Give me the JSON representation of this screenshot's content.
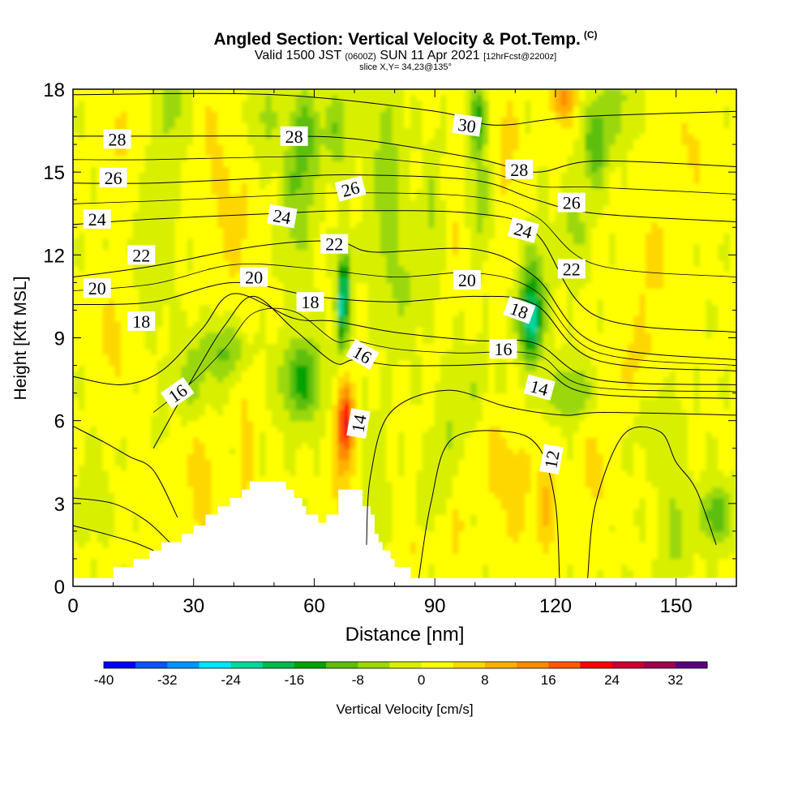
{
  "title": {
    "main": "Angled Section: Vertical Velocity & Pot.Temp.",
    "main_tag": "(C)",
    "valid_a": "Valid 1500 JST",
    "valid_tag1": "(0600Z)",
    "valid_b": "SUN 11 Apr 2021",
    "valid_tag2": "[12hrFcst@2200z]",
    "slice": "slice X,Y= 34,23@135°"
  },
  "chart_data": {
    "type": "heatmap",
    "title": "Angled Section: Vertical Velocity & Pot.Temp.",
    "xlabel": "Distance [nm]",
    "ylabel": "Height [Kft MSL]",
    "xlim": [
      0,
      165
    ],
    "ylim": [
      0,
      18
    ],
    "x_ticks": [
      0,
      30,
      60,
      90,
      120,
      150
    ],
    "y_ticks": [
      0,
      3,
      6,
      9,
      12,
      15,
      18
    ],
    "colorbar": {
      "label": "Vertical Velocity [cm/s]",
      "ticks": [
        -40,
        -32,
        -24,
        -16,
        -8,
        0,
        8,
        16,
        24,
        32
      ],
      "range": [
        -40,
        36
      ],
      "step": 4,
      "colors": [
        "#0000ff",
        "#0a55ff",
        "#0094ff",
        "#00e6ff",
        "#00d79c",
        "#00b94a",
        "#00a200",
        "#5bbf0a",
        "#9ad80a",
        "#d8f000",
        "#ffff00",
        "#ffd700",
        "#ffb000",
        "#ff8c00",
        "#ff5a00",
        "#ff0000",
        "#cc0030",
        "#a00050",
        "#5c0080"
      ]
    },
    "velocity_features": [
      {
        "x": 32,
        "y": 3.8,
        "w": 7,
        "sx": 3,
        "sy": 2.2
      },
      {
        "x": 22,
        "y": 4.5,
        "w": 4,
        "sx": 5,
        "sy": 2.5
      },
      {
        "x": 43,
        "y": 5,
        "w": 6,
        "sx": 2,
        "sy": 3
      },
      {
        "x": 68,
        "y": 6,
        "w": 20,
        "sx": 2,
        "sy": 1.3
      },
      {
        "x": 67,
        "y": 4.5,
        "w": 7,
        "sx": 3,
        "sy": 2.5
      },
      {
        "x": 110,
        "y": 3.5,
        "w": 7,
        "sx": 4,
        "sy": 2
      },
      {
        "x": 118,
        "y": 3,
        "w": 8,
        "sx": 2.5,
        "sy": 2
      },
      {
        "x": 130,
        "y": 4.5,
        "w": 5,
        "sx": 4,
        "sy": 2
      },
      {
        "x": 95,
        "y": 2,
        "w": 4,
        "sx": 3,
        "sy": 2
      },
      {
        "x": 104,
        "y": 5,
        "w": 5,
        "sx": 3,
        "sy": 2
      },
      {
        "x": 85,
        "y": 1.5,
        "w": 4,
        "sx": 3,
        "sy": 1
      },
      {
        "x": 122,
        "y": 17.8,
        "w": 14,
        "sx": 3,
        "sy": 1
      },
      {
        "x": 108,
        "y": 16,
        "w": 6,
        "sx": 3,
        "sy": 2
      },
      {
        "x": 112,
        "y": 12,
        "w": 4,
        "sx": 5,
        "sy": 2
      },
      {
        "x": 40,
        "y": 13,
        "w": 5,
        "sx": 6,
        "sy": 2.5
      },
      {
        "x": 10,
        "y": 9,
        "w": 5,
        "sx": 4,
        "sy": 2
      },
      {
        "x": 12,
        "y": 16,
        "w": 4,
        "sx": 4,
        "sy": 2
      },
      {
        "x": 35,
        "y": 16.5,
        "w": 4,
        "sx": 4,
        "sy": 2
      },
      {
        "x": 145,
        "y": 12,
        "w": 4,
        "sx": 6,
        "sy": 3
      },
      {
        "x": 140,
        "y": 8,
        "w": 4,
        "sx": 6,
        "sy": 2
      },
      {
        "x": 155,
        "y": 16,
        "w": 4,
        "sx": 5,
        "sy": 2
      },
      {
        "x": 95,
        "y": 13,
        "w": 4,
        "sx": 4,
        "sy": 2
      },
      {
        "x": 38,
        "y": 8.5,
        "w": -9,
        "sx": 5,
        "sy": 1.1
      },
      {
        "x": 30,
        "y": 7.5,
        "w": -7,
        "sx": 4,
        "sy": 1.5
      },
      {
        "x": 22,
        "y": 5.5,
        "w": -5,
        "sx": 3,
        "sy": 1.5
      },
      {
        "x": 57,
        "y": 7.5,
        "w": -14,
        "sx": 5,
        "sy": 1.5
      },
      {
        "x": 67,
        "y": 10,
        "w": -20,
        "sx": 1.5,
        "sy": 1.5
      },
      {
        "x": 68,
        "y": 11.3,
        "w": -12,
        "sx": 1.5,
        "sy": 1.2
      },
      {
        "x": 56,
        "y": 14,
        "w": -8,
        "sx": 4,
        "sy": 2.2
      },
      {
        "x": 58,
        "y": 16.5,
        "w": -10,
        "sx": 4,
        "sy": 1.5
      },
      {
        "x": 66,
        "y": 16.5,
        "w": -8,
        "sx": 3,
        "sy": 1.5
      },
      {
        "x": 78,
        "y": 15,
        "w": -7,
        "sx": 4,
        "sy": 3
      },
      {
        "x": 82,
        "y": 11,
        "w": -5,
        "sx": 5,
        "sy": 2
      },
      {
        "x": 90,
        "y": 13.5,
        "w": -6,
        "sx": 3,
        "sy": 2
      },
      {
        "x": 101,
        "y": 17,
        "w": -14,
        "sx": 2,
        "sy": 1.2
      },
      {
        "x": 101,
        "y": 14,
        "w": -7,
        "sx": 3,
        "sy": 2
      },
      {
        "x": 114,
        "y": 9.5,
        "w": -18,
        "sx": 2.5,
        "sy": 1.3
      },
      {
        "x": 114,
        "y": 11,
        "w": -12,
        "sx": 4,
        "sy": 2
      },
      {
        "x": 124,
        "y": 7,
        "w": -9,
        "sx": 6,
        "sy": 1
      },
      {
        "x": 130,
        "y": 16,
        "w": -12,
        "sx": 3,
        "sy": 1.5
      },
      {
        "x": 135,
        "y": 17.5,
        "w": -7,
        "sx": 4,
        "sy": 1.5
      },
      {
        "x": 125,
        "y": 13,
        "w": -6,
        "sx": 3,
        "sy": 1.5
      },
      {
        "x": 20,
        "y": 12.5,
        "w": -4,
        "sx": 4,
        "sy": 3
      },
      {
        "x": 25,
        "y": 17.5,
        "w": -7,
        "sx": 4,
        "sy": 1.5
      },
      {
        "x": 48,
        "y": 17,
        "w": -6,
        "sx": 3,
        "sy": 1.5
      },
      {
        "x": 160,
        "y": 2.6,
        "w": -12,
        "sx": 4,
        "sy": 1
      },
      {
        "x": 150,
        "y": 2,
        "w": -6,
        "sx": 3,
        "sy": 2
      },
      {
        "x": 93,
        "y": 5,
        "w": -6,
        "sx": 2,
        "sy": 2
      },
      {
        "x": 88,
        "y": 3,
        "w": -4,
        "sx": 2,
        "sy": 1.5
      },
      {
        "x": 5,
        "y": 3.5,
        "w": -4,
        "sx": 3,
        "sy": 1.5
      },
      {
        "x": 145,
        "y": 6,
        "w": -4,
        "sx": 6,
        "sy": 1.5
      },
      {
        "x": 100,
        "y": 7,
        "w": -4,
        "sx": 5,
        "sy": 1.5
      },
      {
        "x": 75,
        "y": 4,
        "w": -4,
        "sx": 3,
        "sy": 2
      }
    ],
    "terrain": [
      [
        0,
        0.3
      ],
      [
        9,
        0.3
      ],
      [
        10,
        0.7
      ],
      [
        14,
        0.7
      ],
      [
        15,
        1
      ],
      [
        18,
        1
      ],
      [
        19,
        1.3
      ],
      [
        21,
        1.3
      ],
      [
        22,
        1.6
      ],
      [
        26,
        1.6
      ],
      [
        27,
        1.9
      ],
      [
        29,
        1.9
      ],
      [
        30,
        2.2
      ],
      [
        32,
        2.2
      ],
      [
        33,
        2.6
      ],
      [
        35,
        2.6
      ],
      [
        36,
        2.9
      ],
      [
        38,
        2.9
      ],
      [
        39,
        3.2
      ],
      [
        41,
        3.2
      ],
      [
        42,
        3.5
      ],
      [
        43,
        3.5
      ],
      [
        44,
        3.8
      ],
      [
        52,
        3.8
      ],
      [
        53,
        3.5
      ],
      [
        54,
        3.5
      ],
      [
        55,
        3.2
      ],
      [
        56,
        3.2
      ],
      [
        57,
        2.9
      ],
      [
        58,
        2.6
      ],
      [
        60,
        2.6
      ],
      [
        61,
        2.3
      ],
      [
        62,
        2.3
      ],
      [
        63,
        2.6
      ],
      [
        65,
        2.6
      ],
      [
        66,
        3.5
      ],
      [
        71,
        3.5
      ],
      [
        72,
        2.9
      ],
      [
        74,
        2.6
      ],
      [
        75,
        1.9
      ],
      [
        76,
        1.6
      ],
      [
        77,
        1.3
      ],
      [
        79,
        1.0
      ],
      [
        80,
        0.7
      ],
      [
        83,
        0.7
      ],
      [
        84,
        0.3
      ],
      [
        165,
        0.3
      ]
    ],
    "theta_contours": [
      {
        "value": 12,
        "pts": [
          [
            0,
            2.2
          ],
          [
            8,
            1.9
          ],
          [
            15,
            1.6
          ],
          [
            20,
            1.3
          ]
        ]
      },
      {
        "value": 12,
        "pts": [
          [
            86,
            0.3
          ],
          [
            89,
            3
          ],
          [
            94,
            5.3
          ],
          [
            108,
            5.6
          ],
          [
            116,
            5
          ],
          [
            120,
            3
          ],
          [
            121,
            0.3
          ]
        ]
      },
      {
        "value": 12,
        "pts": [
          [
            128,
            0.3
          ],
          [
            130,
            3
          ],
          [
            137,
            5.5
          ],
          [
            146,
            5.6
          ],
          [
            150,
            4.5
          ],
          [
            155,
            3.5
          ],
          [
            160,
            1.5
          ]
        ]
      },
      {
        "value": 14,
        "pts": [
          [
            0,
            3.2
          ],
          [
            10,
            3
          ],
          [
            18,
            2.4
          ],
          [
            24,
            1.6
          ]
        ]
      },
      {
        "value": 14,
        "pts": [
          [
            73,
            1.5
          ],
          [
            74,
            4
          ],
          [
            79,
            6.3
          ],
          [
            93,
            7.1
          ],
          [
            108,
            6.5
          ],
          [
            122,
            6.2
          ],
          [
            132,
            6.3
          ],
          [
            165,
            6.2
          ]
        ]
      },
      {
        "value": 16,
        "pts": [
          [
            0,
            5.8
          ],
          [
            8,
            5.2
          ],
          [
            14,
            4.7
          ],
          [
            20,
            4.2
          ],
          [
            26,
            2.5
          ]
        ]
      },
      {
        "value": 16,
        "pts": [
          [
            20,
            5
          ],
          [
            30,
            7.6
          ],
          [
            38,
            9.5
          ],
          [
            45,
            10.5
          ],
          [
            55,
            9.3
          ],
          [
            65,
            8.1
          ],
          [
            70,
            8.2
          ],
          [
            80,
            8.0
          ],
          [
            95,
            8.0
          ],
          [
            115,
            8.0
          ],
          [
            128,
            7.0
          ],
          [
            165,
            6.8
          ]
        ]
      },
      {
        "value": 18,
        "pts": [
          [
            0,
            7.6
          ],
          [
            12,
            7.3
          ],
          [
            22,
            7.8
          ],
          [
            32,
            9.3
          ],
          [
            40,
            10.6
          ],
          [
            55,
            9.7
          ],
          [
            65,
            9.6
          ],
          [
            80,
            9.2
          ],
          [
            100,
            8.9
          ],
          [
            115,
            8.8
          ],
          [
            130,
            7.5
          ],
          [
            165,
            7.3
          ]
        ]
      },
      {
        "value": 20,
        "pts": [
          [
            0,
            10.2
          ],
          [
            20,
            10.3
          ],
          [
            40,
            11
          ],
          [
            60,
            10.5
          ],
          [
            80,
            10.3
          ],
          [
            100,
            10.5
          ],
          [
            115,
            10.2
          ],
          [
            130,
            8.2
          ],
          [
            165,
            7.8
          ]
        ]
      },
      {
        "value": 22,
        "pts": [
          [
            0,
            11.2
          ],
          [
            20,
            11.6
          ],
          [
            45,
            12.3
          ],
          [
            65,
            12.5
          ],
          [
            75,
            12.1
          ],
          [
            100,
            12.2
          ],
          [
            115,
            11.2
          ],
          [
            130,
            8.8
          ],
          [
            165,
            8.2
          ]
        ]
      },
      {
        "value": 24,
        "pts": [
          [
            0,
            13.1
          ],
          [
            20,
            13.3
          ],
          [
            50,
            13.5
          ],
          [
            70,
            13.6
          ],
          [
            100,
            13.5
          ],
          [
            115,
            12.8
          ],
          [
            130,
            9.8
          ],
          [
            165,
            9.2
          ]
        ]
      },
      {
        "value": 26,
        "pts": [
          [
            0,
            14.6
          ],
          [
            20,
            14.6
          ],
          [
            50,
            14.8
          ],
          [
            70,
            14.9
          ],
          [
            100,
            14.7
          ],
          [
            115,
            14.0
          ],
          [
            130,
            13.5
          ],
          [
            165,
            13.2
          ]
        ]
      },
      {
        "value": 28,
        "pts": [
          [
            0,
            16.3
          ],
          [
            20,
            16.3
          ],
          [
            50,
            16.3
          ],
          [
            70,
            16.2
          ],
          [
            100,
            15.5
          ],
          [
            115,
            15.0
          ],
          [
            130,
            15.4
          ],
          [
            165,
            15.2
          ]
        ]
      },
      {
        "value": 30,
        "pts": [
          [
            0,
            17.8
          ],
          [
            50,
            17.8
          ],
          [
            90,
            17.2
          ],
          [
            105,
            16.7
          ],
          [
            125,
            17.0
          ],
          [
            165,
            17.2
          ]
        ]
      }
    ],
    "theta_labels": [
      {
        "text": "28",
        "x": 11,
        "y": 16.2,
        "a": 0
      },
      {
        "text": "26",
        "x": 10,
        "y": 14.8,
        "a": 0
      },
      {
        "text": "24",
        "x": 6,
        "y": 13.3,
        "a": 0
      },
      {
        "text": "22",
        "x": 17,
        "y": 12.0,
        "a": 0
      },
      {
        "text": "20",
        "x": 6,
        "y": 10.8,
        "a": 0
      },
      {
        "text": "18",
        "x": 17,
        "y": 9.6,
        "a": 0
      },
      {
        "text": "16",
        "x": 26,
        "y": 7.0,
        "a": -35
      },
      {
        "text": "20",
        "x": 45,
        "y": 11.2,
        "a": 0
      },
      {
        "text": "24",
        "x": 52,
        "y": 13.4,
        "a": 10
      },
      {
        "text": "28",
        "x": 55,
        "y": 16.3,
        "a": 0
      },
      {
        "text": "26",
        "x": 69,
        "y": 14.4,
        "a": -15
      },
      {
        "text": "22",
        "x": 65,
        "y": 12.4,
        "a": 0
      },
      {
        "text": "18",
        "x": 59,
        "y": 10.3,
        "a": 0
      },
      {
        "text": "16",
        "x": 72,
        "y": 8.4,
        "a": 30
      },
      {
        "text": "14",
        "x": 71,
        "y": 5.9,
        "a": -80
      },
      {
        "text": "30",
        "x": 98,
        "y": 16.7,
        "a": 8
      },
      {
        "text": "28",
        "x": 111,
        "y": 15.1,
        "a": 0
      },
      {
        "text": "26",
        "x": 124,
        "y": 13.9,
        "a": 0
      },
      {
        "text": "24",
        "x": 112,
        "y": 12.9,
        "a": 15
      },
      {
        "text": "20",
        "x": 98,
        "y": 11.1,
        "a": 0
      },
      {
        "text": "22",
        "x": 124,
        "y": 11.5,
        "a": 0
      },
      {
        "text": "18",
        "x": 111,
        "y": 10.0,
        "a": 20
      },
      {
        "text": "16",
        "x": 107,
        "y": 8.6,
        "a": 0
      },
      {
        "text": "14",
        "x": 116,
        "y": 7.2,
        "a": 15
      },
      {
        "text": "12",
        "x": 119,
        "y": 4.6,
        "a": -80
      }
    ]
  }
}
